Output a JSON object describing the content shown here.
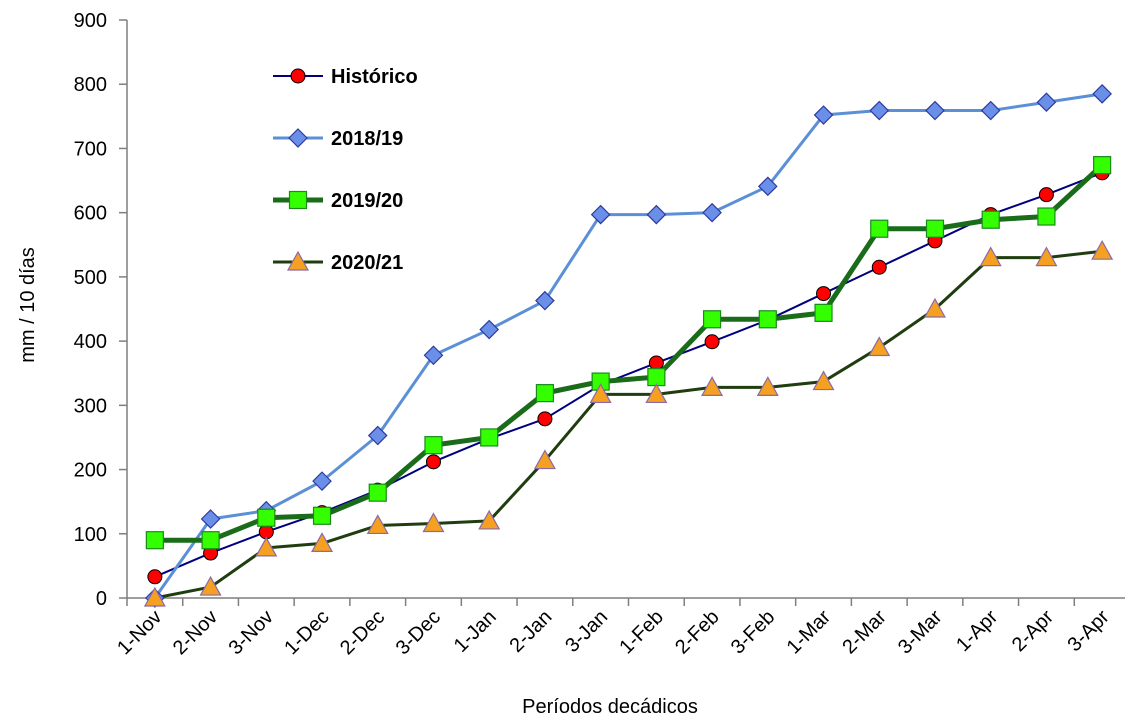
{
  "chart_data": {
    "type": "line",
    "title": "",
    "xlabel": "Períodos decádicos",
    "ylabel": "mm / 10 días",
    "ylim": [
      0,
      900
    ],
    "yticks": [
      0,
      100,
      200,
      300,
      400,
      500,
      600,
      700,
      800,
      900
    ],
    "grid": false,
    "legend_position": "top-left",
    "categories": [
      "1-Nov",
      "2-Nov",
      "3-Nov",
      "1-Dec",
      "2-Dec",
      "3-Dec",
      "1-Jan",
      "2-Jan",
      "3-Jan",
      "1-Feb",
      "2-Feb",
      "3-Feb",
      "1-Mar",
      "2-Mar",
      "3-Mar",
      "1-Apr",
      "2-Apr",
      "3-Apr"
    ],
    "series": [
      {
        "name": "Histórico",
        "line_color": "#000080",
        "marker": "circle",
        "marker_fill": "#ff0000",
        "values": [
          33,
          70,
          103,
          133,
          168,
          212,
          248,
          279,
          332,
          366,
          399,
          433,
          474,
          515,
          556,
          597,
          628,
          662
        ]
      },
      {
        "name": "2018/19",
        "line_color": "#5b8fd6",
        "marker": "diamond",
        "marker_fill": "#6a8fe8",
        "values": [
          0,
          123,
          136,
          182,
          253,
          378,
          418,
          463,
          597,
          597,
          600,
          641,
          752,
          759,
          759,
          759,
          772,
          785
        ]
      },
      {
        "name": "2019/20",
        "line_color": "#1a6b1a",
        "marker": "square",
        "marker_fill": "#33ff00",
        "values": [
          90,
          90,
          125,
          128,
          164,
          238,
          250,
          319,
          337,
          344,
          434,
          434,
          444,
          575,
          575,
          589,
          594,
          674
        ]
      },
      {
        "name": "2020/21",
        "line_color": "#1f3d0f",
        "marker": "triangle",
        "marker_fill": "#f5a020",
        "values": [
          0,
          17,
          78,
          85,
          113,
          116,
          120,
          214,
          317,
          317,
          328,
          328,
          337,
          390,
          450,
          530,
          530,
          540
        ]
      }
    ]
  }
}
